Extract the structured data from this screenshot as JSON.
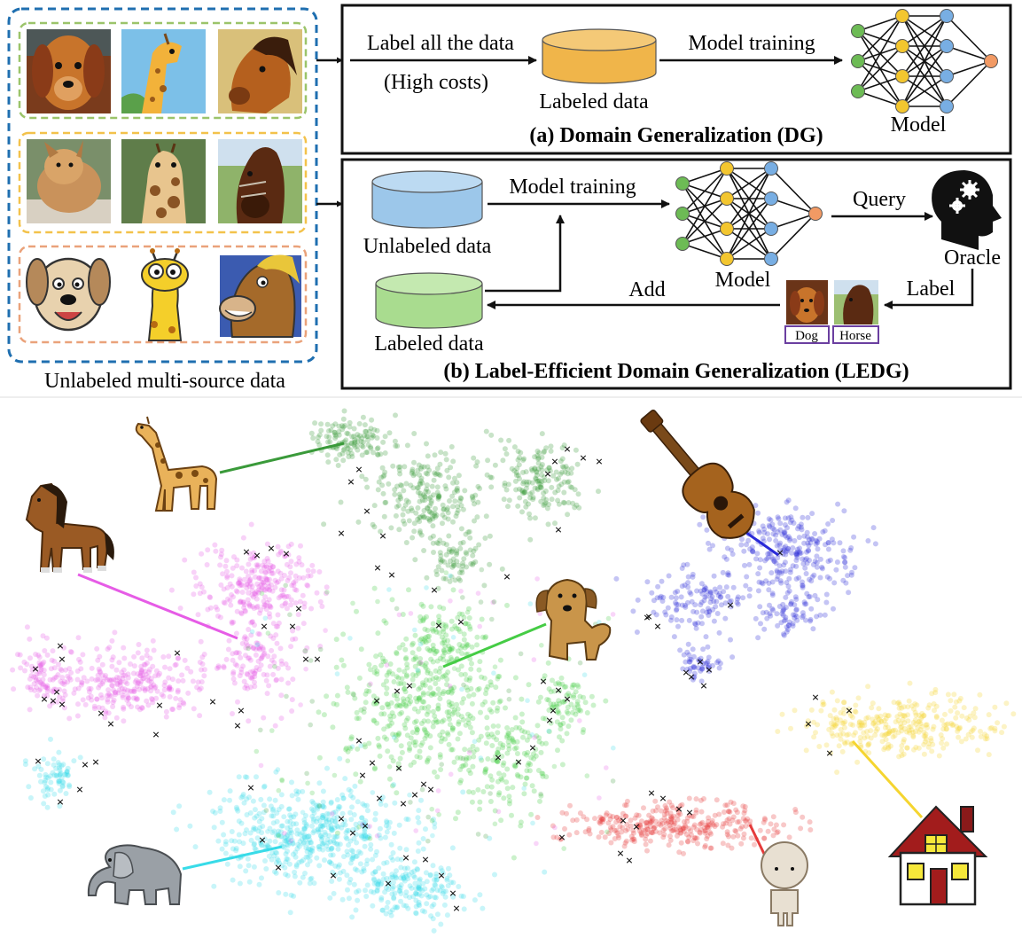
{
  "panel_top": {
    "source_caption": "Unlabeled multi-source data",
    "dg": {
      "label_all": "Label all the data",
      "high_costs": "(High costs)",
      "labeled_data": "Labeled data",
      "model_training": "Model training",
      "model": "Model",
      "title": "(a) Domain Generalization (DG)"
    },
    "ledg": {
      "unlabeled_data": "Unlabeled data",
      "labeled_data": "Labeled data",
      "model_training": "Model training",
      "model": "Model",
      "query": "Query",
      "oracle": "Oracle",
      "label": "Label",
      "add": "Add",
      "tag_dog": "Dog",
      "tag_horse": "Horse",
      "title": "(b) Label-Efficient Domain Generalization (LEDG)"
    }
  },
  "colors": {
    "dashed_outer": "#1f6fb0",
    "domain_photo": "#9bc46a",
    "domain_real": "#f3c24b",
    "domain_cartoon": "#eaa27a",
    "cyl_orange": "#f0b54a",
    "cyl_blue": "#9cc7ea",
    "cyl_green": "#a9dc8f",
    "node_green": "#6dbb55",
    "node_yellow": "#f3c62f",
    "node_blue": "#78aee3",
    "node_orange": "#f29a64",
    "tag_border": "#6b3fa0"
  },
  "icons": [
    "dog-painting-icon",
    "giraffe-painting-icon",
    "horse-painting-icon",
    "dog-photo-icon",
    "giraffe-photo-icon",
    "horse-photo-icon",
    "dog-cartoon-icon",
    "giraffe-cartoon-icon",
    "horse-cartoon-icon",
    "oracle-head-icon",
    "giraffe-icon",
    "horse-icon",
    "guitar-icon",
    "dog-icon",
    "elephant-icon",
    "person-icon",
    "house-icon"
  ],
  "chart_data": {
    "type": "scatter",
    "title": "",
    "xlabel": "",
    "ylabel": "",
    "grid": false,
    "clusters": [
      {
        "name": "giraffe",
        "color": "#3a9a3a",
        "cx": 47,
        "cy": 86,
        "approx_points": 420
      },
      {
        "name": "horse",
        "color": "#e65ce6",
        "cx": 22,
        "cy": 60,
        "approx_points": 700
      },
      {
        "name": "guitar",
        "color": "#2a2ad8",
        "cx": 75,
        "cy": 62,
        "approx_points": 450
      },
      {
        "name": "dog",
        "color": "#45cc45",
        "cx": 45,
        "cy": 52,
        "approx_points": 750
      },
      {
        "name": "elephant",
        "color": "#38dbe8",
        "cx": 34,
        "cy": 24,
        "approx_points": 800
      },
      {
        "name": "person",
        "color": "#e53a3a",
        "cx": 64,
        "cy": 28,
        "approx_points": 300
      },
      {
        "name": "house",
        "color": "#f5d530",
        "cx": 90,
        "cy": 43,
        "approx_points": 300
      }
    ],
    "selected_marker": "×",
    "selected_color": "#111111"
  }
}
